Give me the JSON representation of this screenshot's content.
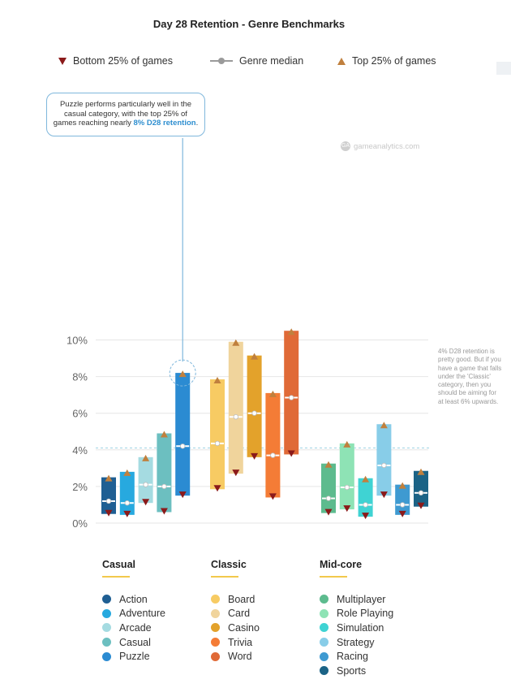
{
  "chart_data": {
    "type": "bar",
    "title": "Day 28 Retention - Genre Benchmarks",
    "ylabel": "",
    "ylim": [
      0,
      10.5
    ],
    "yticks": [
      "0%",
      "2%",
      "4%",
      "6%",
      "8%",
      "10%"
    ],
    "legend": {
      "bottom": "Bottom 25% of games",
      "median": "Genre median",
      "top": "Top 25% of games"
    },
    "reference_line": {
      "value": 4.1
    },
    "callout": {
      "text_before": "Puzzle performs particularly well in the casual category, with the top 25% of games reaching nearly ",
      "highlight": "8% D28 retention",
      "text_after": "."
    },
    "note": "4% D28 retention is pretty good. But if you have a game that falls under the 'Classic' category, then you should be aiming for at least 6% upwards.",
    "watermark": "gameanalytics.com",
    "groups": [
      {
        "name": "Casual",
        "genres": [
          {
            "name": "Action",
            "color": "#1f5f93",
            "bottom": 0.5,
            "median": 1.2,
            "top": 2.5
          },
          {
            "name": "Adventure",
            "color": "#27a9df",
            "bottom": 0.45,
            "median": 1.1,
            "top": 2.8
          },
          {
            "name": "Arcade",
            "color": "#a5dbe1",
            "bottom": 1.1,
            "median": 2.1,
            "top": 3.6
          },
          {
            "name": "Casual",
            "color": "#6cbfc0",
            "bottom": 0.6,
            "median": 2.0,
            "top": 4.9
          },
          {
            "name": "Puzzle",
            "color": "#2b8bd2",
            "bottom": 1.5,
            "median": 4.2,
            "top": 8.2
          }
        ]
      },
      {
        "name": "Classic",
        "genres": [
          {
            "name": "Board",
            "color": "#f7cb63",
            "bottom": 1.85,
            "median": 4.35,
            "top": 7.85
          },
          {
            "name": "Card",
            "color": "#f0d49c",
            "bottom": 2.7,
            "median": 5.8,
            "top": 9.9
          },
          {
            "name": "Casino",
            "color": "#e3a22b",
            "bottom": 3.6,
            "median": 6.0,
            "top": 9.15
          },
          {
            "name": "Trivia",
            "color": "#f47c36",
            "bottom": 1.4,
            "median": 3.7,
            "top": 7.1
          },
          {
            "name": "Word",
            "color": "#e06a37",
            "bottom": 3.75,
            "median": 6.85,
            "top": 10.5
          }
        ]
      },
      {
        "name": "Mid-core",
        "genres": [
          {
            "name": "Multiplayer",
            "color": "#5dbb8e",
            "bottom": 0.55,
            "median": 1.35,
            "top": 3.25
          },
          {
            "name": "Role Playing",
            "color": "#8ee3b5",
            "bottom": 0.75,
            "median": 1.95,
            "top": 4.35
          },
          {
            "name": "Simulation",
            "color": "#3fd3d3",
            "bottom": 0.35,
            "median": 1.0,
            "top": 2.45
          },
          {
            "name": "Strategy",
            "color": "#88cde8",
            "bottom": 1.5,
            "median": 3.15,
            "top": 5.4
          },
          {
            "name": "Racing",
            "color": "#3e9ad1",
            "bottom": 0.45,
            "median": 1.0,
            "top": 2.1
          },
          {
            "name": "Sports",
            "color": "#1b6386",
            "bottom": 0.9,
            "median": 1.65,
            "top": 2.85
          }
        ]
      }
    ]
  }
}
